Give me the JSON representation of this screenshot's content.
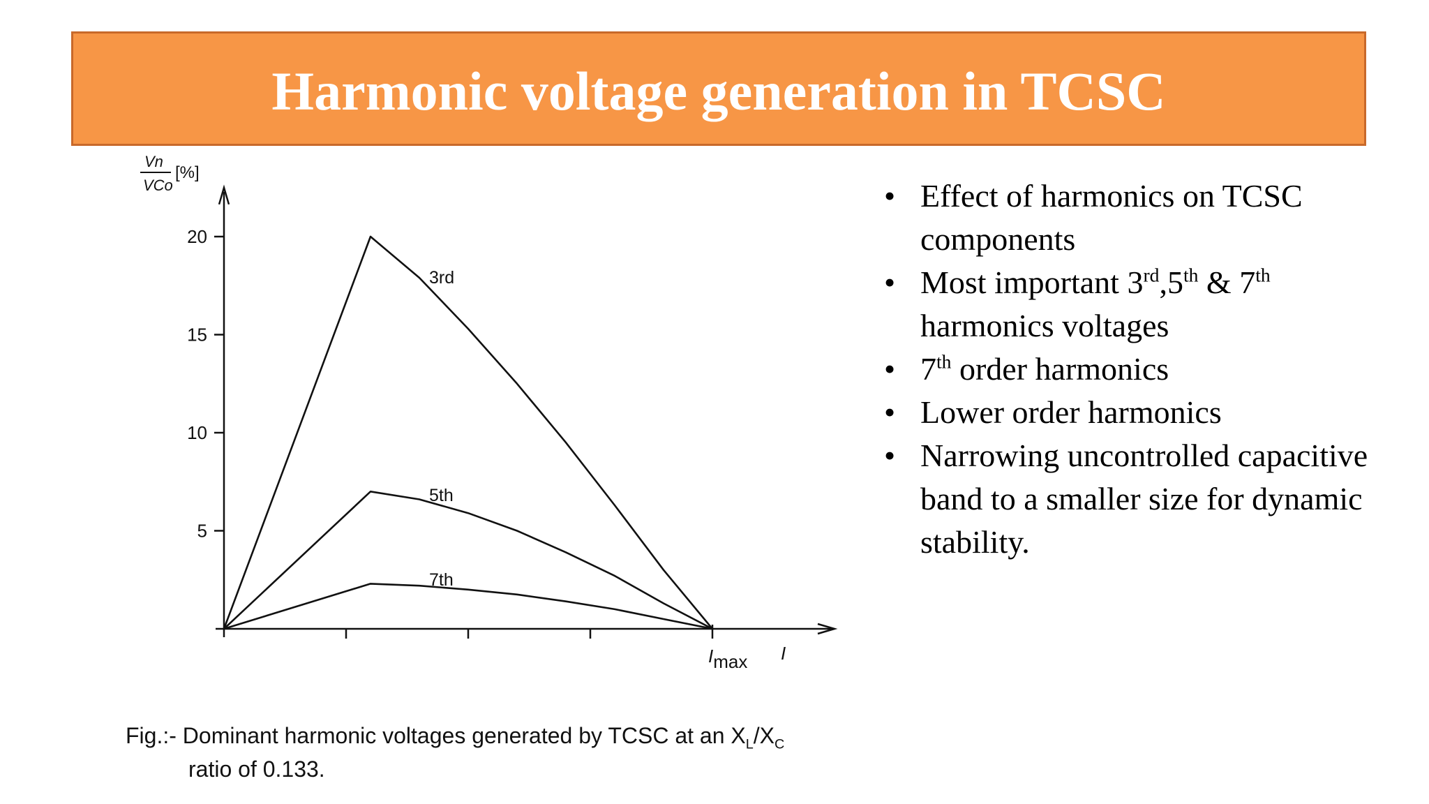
{
  "slide": {
    "title": "Harmonic voltage generation in TCSC"
  },
  "bullets": [
    {
      "parts": [
        {
          "t": "Effect of harmonics  on TCSC components"
        }
      ]
    },
    {
      "parts": [
        {
          "t": "Most important 3"
        },
        {
          "sup": "rd"
        },
        {
          "t": ",5"
        },
        {
          "sup": "th"
        },
        {
          "t": " & 7"
        },
        {
          "sup": "th"
        },
        {
          "t": " harmonics voltages"
        }
      ]
    },
    {
      "parts": [
        {
          "t": "7"
        },
        {
          "sup": "th"
        },
        {
          "t": " order harmonics"
        }
      ]
    },
    {
      "parts": [
        {
          "t": "Lower order harmonics"
        }
      ]
    },
    {
      "parts": [
        {
          "t": "Narrowing uncontrolled capacitive band to a smaller size for dynamic stability."
        }
      ]
    }
  ],
  "bullet_symbol": "•",
  "caption": {
    "line1_prefix": "Fig.:- Dominant harmonic voltages generated by TCSC at an X",
    "sub_L": "L",
    "slash": "/X",
    "sub_C": "C",
    "line2": "ratio of 0.133."
  },
  "colors": {
    "banner": "#f79646",
    "banner_border": "#c8692a",
    "title_text": "#ffffff",
    "chart_ink": "#111111"
  },
  "chart_data": {
    "type": "line",
    "ylabel_num": "Vn",
    "ylabel_den": "VCo",
    "ylabel_unit": "[%]",
    "xlabel": "I",
    "x_max_label": "Imax",
    "yticks": [
      5,
      10,
      15,
      20
    ],
    "ylim": [
      0,
      22
    ],
    "xlim": [
      0,
      1.25
    ],
    "x_minor_ticks": [
      0.25,
      0.5,
      0.75
    ],
    "grid": false,
    "series": [
      {
        "name": "3rd",
        "x": [
          0,
          0.3,
          0.4,
          0.5,
          0.6,
          0.7,
          0.8,
          0.9,
          1.0
        ],
        "y": [
          0,
          20.0,
          17.9,
          15.3,
          12.5,
          9.5,
          6.3,
          3.0,
          0
        ]
      },
      {
        "name": "5th",
        "x": [
          0,
          0.3,
          0.4,
          0.5,
          0.6,
          0.7,
          0.8,
          0.9,
          1.0
        ],
        "y": [
          0,
          7.0,
          6.6,
          5.9,
          5.0,
          3.9,
          2.7,
          1.3,
          0
        ]
      },
      {
        "name": "7th",
        "x": [
          0,
          0.3,
          0.4,
          0.5,
          0.6,
          0.7,
          0.8,
          0.9,
          1.0
        ],
        "y": [
          0,
          2.3,
          2.2,
          2.0,
          1.75,
          1.4,
          1.0,
          0.5,
          0
        ]
      }
    ]
  }
}
